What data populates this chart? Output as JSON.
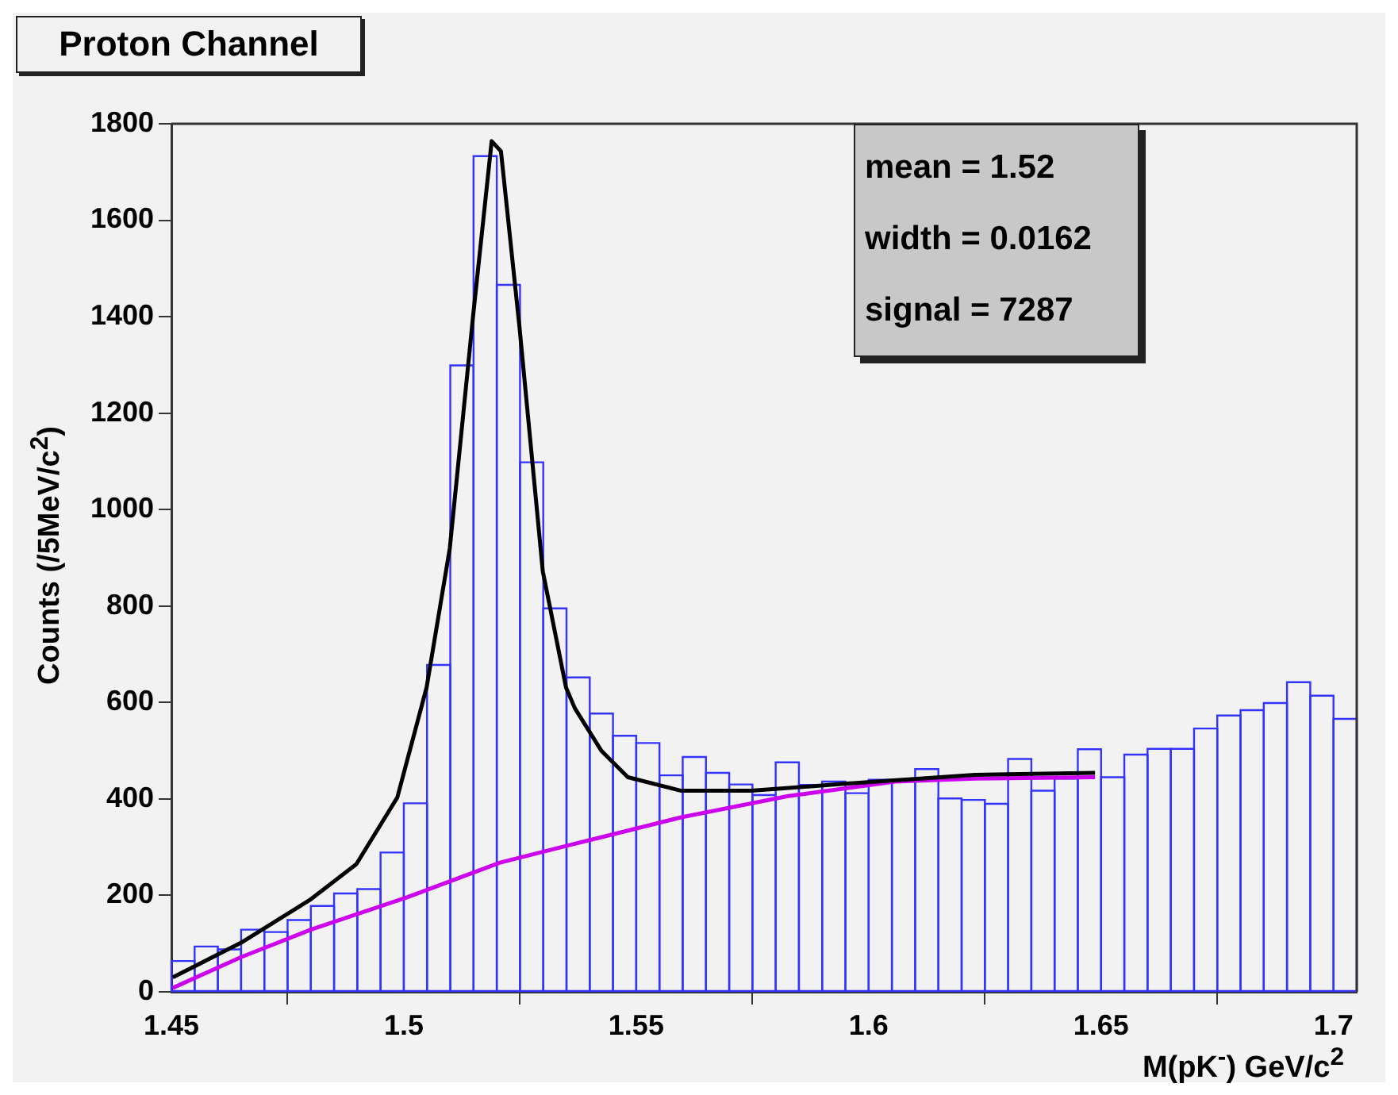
{
  "chart_data": {
    "type": "histogram",
    "title": "Proton Channel",
    "xlabel": "M(pK$^{-}$) GeV/c$^{2}$",
    "ylabel": "Counts (/5MeV/c$^{2}$)",
    "annotations": [
      "mean = 1.52",
      "width = 0.0162",
      "signal = 7287"
    ],
    "xlim": [
      1.45,
      1.705
    ],
    "xticks": [
      1.45,
      1.5,
      1.55,
      1.6,
      1.65,
      1.7
    ],
    "ylim": [
      0,
      1800
    ],
    "yticks": [
      0,
      200,
      400,
      600,
      800,
      1000,
      1200,
      1400,
      1600,
      1800
    ],
    "grid": false,
    "legend": false,
    "color": "#3333ff",
    "bins": [
      1.45,
      1.455,
      1.46,
      1.465,
      1.47,
      1.475,
      1.48,
      1.485,
      1.49,
      1.495,
      1.5,
      1.505,
      1.51,
      1.515,
      1.52,
      1.525,
      1.53,
      1.535,
      1.54,
      1.545,
      1.55,
      1.555,
      1.56,
      1.565,
      1.57,
      1.575,
      1.58,
      1.585,
      1.59,
      1.595,
      1.6,
      1.605,
      1.61,
      1.615,
      1.62,
      1.625,
      1.63,
      1.635,
      1.64,
      1.645,
      1.65,
      1.655,
      1.66,
      1.665,
      1.67,
      1.675,
      1.68,
      1.685,
      1.69,
      1.695,
      1.7,
      1.705
    ],
    "values": [
      64,
      94,
      88,
      129,
      124,
      149,
      178,
      204,
      213,
      289,
      391,
      678,
      1299,
      1733,
      1466,
      1098,
      795,
      652,
      577,
      531,
      516,
      449,
      487,
      454,
      430,
      408,
      476,
      429,
      436,
      412,
      440,
      440,
      462,
      401,
      398,
      390,
      483,
      417,
      442,
      503,
      445,
      492,
      504,
      504,
      546,
      573,
      584,
      599,
      642,
      614,
      566
    ],
    "series": [
      {
        "type": "line",
        "color": "#000000",
        "x": [
          1.4503,
          1.465,
          1.48,
          1.4898,
          1.4986,
          1.5049,
          1.5099,
          1.5149,
          1.5189,
          1.5209,
          1.5249,
          1.5299,
          1.5349,
          1.5368,
          1.5425,
          1.5482,
          1.5597,
          1.5747,
          1.5942,
          1.6229,
          1.6487
        ],
        "values": [
          30,
          102,
          192,
          265,
          403,
          631,
          920,
          1401,
          1764,
          1743,
          1377,
          872,
          631,
          588,
          500,
          445,
          417,
          417,
          431,
          450,
          454
        ]
      },
      {
        "type": "line",
        "color": "#cc00ee",
        "x": [
          1.4503,
          1.465,
          1.48,
          1.5007,
          1.5207,
          1.5368,
          1.5597,
          1.5827,
          1.6057,
          1.6229,
          1.6487
        ],
        "values": [
          8,
          72,
          129,
          196,
          268,
          307,
          362,
          406,
          436,
          442,
          445
        ]
      }
    ]
  }
}
